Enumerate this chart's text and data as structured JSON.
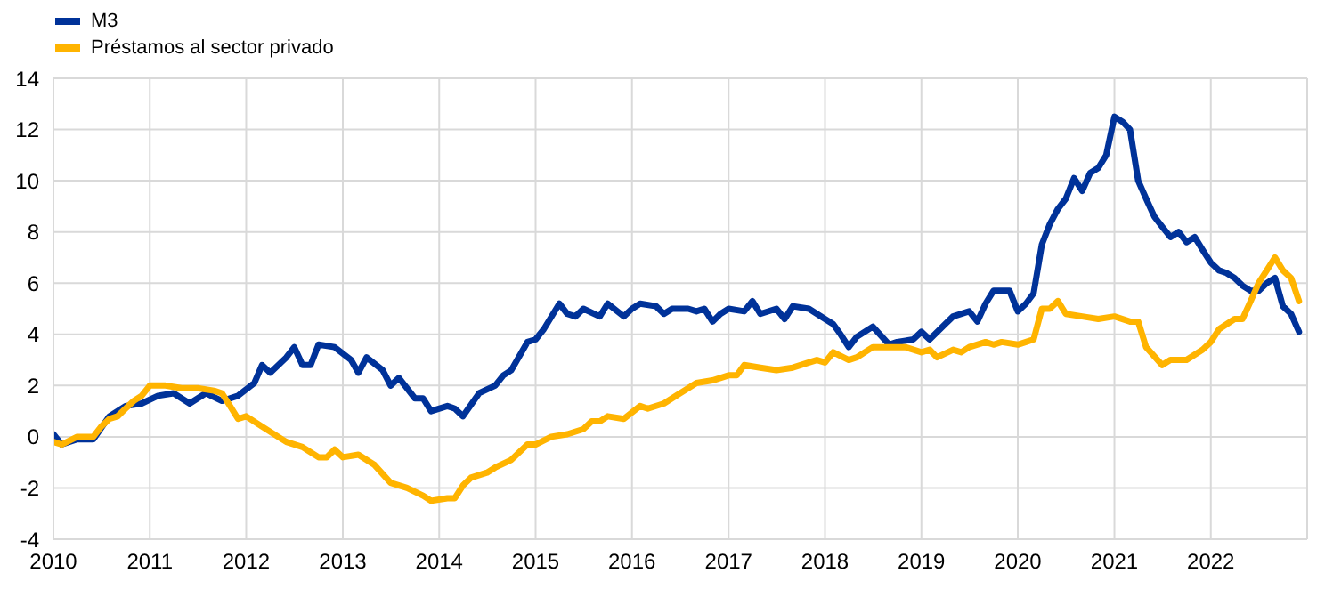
{
  "chart_data": {
    "type": "line",
    "series": [
      {
        "name": "M3",
        "color": "#003299",
        "x": [
          "2010-01",
          "2010-02",
          "2010-04",
          "2010-06",
          "2010-08",
          "2010-10",
          "2010-12",
          "2011-02",
          "2011-04",
          "2011-06",
          "2011-08",
          "2011-10",
          "2011-12",
          "2012-02",
          "2012-03",
          "2012-04",
          "2012-06",
          "2012-07",
          "2012-08",
          "2012-09",
          "2012-10",
          "2012-12",
          "2013-02",
          "2013-03",
          "2013-04",
          "2013-06",
          "2013-07",
          "2013-08",
          "2013-10",
          "2013-11",
          "2013-12",
          "2014-02",
          "2014-03",
          "2014-04",
          "2014-06",
          "2014-08",
          "2014-09",
          "2014-10",
          "2014-12",
          "2015-01",
          "2015-02",
          "2015-04",
          "2015-05",
          "2015-06",
          "2015-07",
          "2015-09",
          "2015-10",
          "2015-12",
          "2016-01",
          "2016-02",
          "2016-04",
          "2016-05",
          "2016-06",
          "2016-08",
          "2016-09",
          "2016-10",
          "2016-11",
          "2016-12",
          "2017-01",
          "2017-03",
          "2017-04",
          "2017-05",
          "2017-07",
          "2017-08",
          "2017-09",
          "2017-11",
          "2018-01",
          "2018-02",
          "2018-03",
          "2018-04",
          "2018-05",
          "2018-07",
          "2018-09",
          "2018-10",
          "2018-12",
          "2019-01",
          "2019-02",
          "2019-04",
          "2019-05",
          "2019-07",
          "2019-08",
          "2019-09",
          "2019-10",
          "2019-12",
          "2020-01",
          "2020-02",
          "2020-03",
          "2020-04",
          "2020-05",
          "2020-06",
          "2020-07",
          "2020-08",
          "2020-09",
          "2020-10",
          "2020-11",
          "2020-12",
          "2021-01",
          "2021-02",
          "2021-03",
          "2021-04",
          "2021-05",
          "2021-06",
          "2021-07",
          "2021-08",
          "2021-09",
          "2021-10",
          "2021-11",
          "2021-12",
          "2022-01",
          "2022-02",
          "2022-03",
          "2022-04",
          "2022-05",
          "2022-06",
          "2022-07",
          "2022-08",
          "2022-09",
          "2022-10",
          "2022-11",
          "2022-12"
        ],
        "values": [
          0.1,
          -0.3,
          -0.1,
          -0.1,
          0.8,
          1.2,
          1.3,
          1.6,
          1.7,
          1.3,
          1.7,
          1.4,
          1.6,
          2.1,
          2.8,
          2.5,
          3.1,
          3.5,
          2.8,
          2.8,
          3.6,
          3.5,
          3.0,
          2.5,
          3.1,
          2.6,
          2.0,
          2.3,
          1.5,
          1.5,
          1.0,
          1.2,
          1.1,
          0.8,
          1.7,
          2.0,
          2.4,
          2.6,
          3.7,
          3.8,
          4.2,
          5.2,
          4.8,
          4.7,
          5.0,
          4.7,
          5.2,
          4.7,
          5.0,
          5.2,
          5.1,
          4.8,
          5.0,
          5.0,
          4.9,
          5.0,
          4.5,
          4.8,
          5.0,
          4.9,
          5.3,
          4.8,
          5.0,
          4.6,
          5.1,
          5.0,
          4.6,
          4.4,
          4.0,
          3.5,
          3.9,
          4.3,
          3.6,
          3.7,
          3.8,
          4.1,
          3.8,
          4.4,
          4.7,
          4.9,
          4.5,
          5.2,
          5.7,
          5.7,
          4.9,
          5.2,
          5.6,
          7.5,
          8.3,
          8.9,
          9.3,
          10.1,
          9.6,
          10.3,
          10.5,
          11.0,
          12.5,
          12.3,
          12.0,
          10.0,
          9.3,
          8.6,
          8.2,
          7.8,
          8.0,
          7.6,
          7.8,
          7.3,
          6.8,
          6.5,
          6.4,
          6.2,
          5.9,
          5.7,
          5.7,
          6.0,
          6.2,
          5.1,
          4.8,
          4.1
        ]
      },
      {
        "name": "Préstamos al sector privado",
        "color": "#ffb400",
        "x": [
          "2010-01",
          "2010-02",
          "2010-04",
          "2010-06",
          "2010-07",
          "2010-08",
          "2010-09",
          "2010-10",
          "2010-11",
          "2010-12",
          "2011-01",
          "2011-03",
          "2011-05",
          "2011-07",
          "2011-09",
          "2011-10",
          "2011-11",
          "2011-12",
          "2012-01",
          "2012-03",
          "2012-05",
          "2012-06",
          "2012-08",
          "2012-10",
          "2012-11",
          "2012-12",
          "2013-01",
          "2013-03",
          "2013-05",
          "2013-07",
          "2013-09",
          "2013-11",
          "2013-12",
          "2014-02",
          "2014-03",
          "2014-04",
          "2014-05",
          "2014-07",
          "2014-08",
          "2014-10",
          "2014-12",
          "2015-01",
          "2015-03",
          "2015-05",
          "2015-07",
          "2015-08",
          "2015-09",
          "2015-10",
          "2015-12",
          "2016-02",
          "2016-03",
          "2016-05",
          "2016-07",
          "2016-09",
          "2016-11",
          "2017-01",
          "2017-02",
          "2017-03",
          "2017-05",
          "2017-07",
          "2017-09",
          "2017-11",
          "2017-12",
          "2018-01",
          "2018-02",
          "2018-04",
          "2018-05",
          "2018-07",
          "2018-09",
          "2018-11",
          "2019-01",
          "2019-02",
          "2019-03",
          "2019-05",
          "2019-06",
          "2019-07",
          "2019-09",
          "2019-10",
          "2019-11",
          "2020-01",
          "2020-02",
          "2020-03",
          "2020-04",
          "2020-05",
          "2020-06",
          "2020-07",
          "2020-09",
          "2020-11",
          "2021-01",
          "2021-03",
          "2021-04",
          "2021-05",
          "2021-07",
          "2021-08",
          "2021-10",
          "2021-12",
          "2022-01",
          "2022-02",
          "2022-04",
          "2022-05",
          "2022-06",
          "2022-07",
          "2022-08",
          "2022-09",
          "2022-10",
          "2022-11",
          "2022-12"
        ],
        "values": [
          -0.2,
          -0.3,
          0.0,
          0.0,
          0.4,
          0.7,
          0.8,
          1.1,
          1.4,
          1.6,
          2.0,
          2.0,
          1.9,
          1.9,
          1.8,
          1.7,
          1.2,
          0.7,
          0.8,
          0.4,
          0.0,
          -0.2,
          -0.4,
          -0.8,
          -0.8,
          -0.5,
          -0.8,
          -0.7,
          -1.1,
          -1.8,
          -2.0,
          -2.3,
          -2.5,
          -2.4,
          -2.4,
          -1.9,
          -1.6,
          -1.4,
          -1.2,
          -0.9,
          -0.3,
          -0.3,
          0.0,
          0.1,
          0.3,
          0.6,
          0.6,
          0.8,
          0.7,
          1.2,
          1.1,
          1.3,
          1.7,
          2.1,
          2.2,
          2.4,
          2.4,
          2.8,
          2.7,
          2.6,
          2.7,
          2.9,
          3.0,
          2.9,
          3.3,
          3.0,
          3.1,
          3.5,
          3.5,
          3.5,
          3.3,
          3.4,
          3.1,
          3.4,
          3.3,
          3.5,
          3.7,
          3.6,
          3.7,
          3.6,
          3.7,
          3.8,
          5.0,
          5.0,
          5.3,
          4.8,
          4.7,
          4.6,
          4.7,
          4.5,
          4.5,
          3.5,
          2.8,
          3.0,
          3.0,
          3.4,
          3.7,
          4.2,
          4.6,
          4.6,
          5.3,
          6.0,
          6.5,
          7.0,
          6.5,
          6.2,
          5.3
        ]
      }
    ],
    "xlim": [
      "2010-01",
      "2023-01"
    ],
    "xticks": [
      {
        "value": "2010-01",
        "label": "2010"
      },
      {
        "value": "2011-01",
        "label": "2011"
      },
      {
        "value": "2012-01",
        "label": "2012"
      },
      {
        "value": "2013-01",
        "label": "2013"
      },
      {
        "value": "2014-01",
        "label": "2014"
      },
      {
        "value": "2015-01",
        "label": "2015"
      },
      {
        "value": "2016-01",
        "label": "2016"
      },
      {
        "value": "2017-01",
        "label": "2017"
      },
      {
        "value": "2018-01",
        "label": "2018"
      },
      {
        "value": "2019-01",
        "label": "2019"
      },
      {
        "value": "2020-01",
        "label": "2020"
      },
      {
        "value": "2021-01",
        "label": "2021"
      },
      {
        "value": "2022-01",
        "label": "2022"
      }
    ],
    "ylim": [
      -4,
      14
    ],
    "yticks": [
      -4,
      -2,
      0,
      2,
      4,
      6,
      8,
      10,
      12,
      14
    ],
    "grid": true,
    "legend": "top left",
    "marker": "none",
    "line_style": "solid"
  }
}
